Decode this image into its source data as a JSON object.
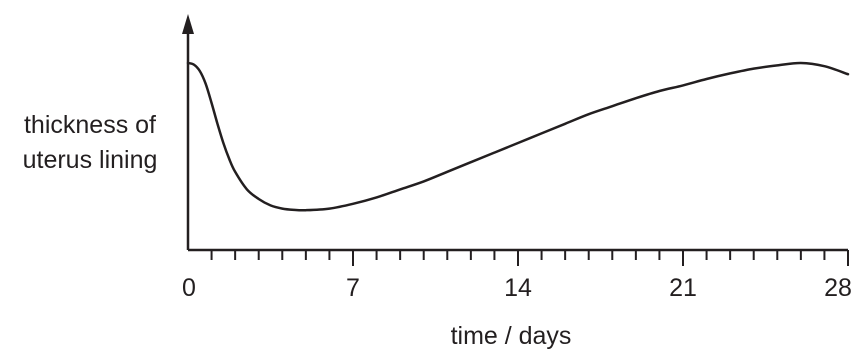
{
  "chart_data": {
    "type": "line",
    "title": "",
    "xlabel": "time / days",
    "ylabel_lines": [
      "thickness of",
      "uterus lining"
    ],
    "xlim": [
      0,
      28
    ],
    "ylim": [
      0,
      1
    ],
    "x_ticks_major": [
      "0",
      "7",
      "14",
      "21",
      "28"
    ],
    "x_minor_tick_step": 1,
    "grid": false,
    "y_tick_labels": "none",
    "series": [
      {
        "x": [
          0,
          0.25,
          0.5,
          0.75,
          1,
          1.25,
          1.5,
          1.75,
          2,
          2.5,
          3,
          3.5,
          4,
          4.5,
          5,
          6,
          7,
          8,
          9,
          10,
          11,
          12,
          13,
          14,
          15,
          16,
          17,
          18,
          19,
          20,
          21,
          22,
          23,
          24,
          25,
          26,
          27,
          28
        ],
        "y": [
          0.95,
          0.94,
          0.9,
          0.82,
          0.7,
          0.57,
          0.45,
          0.35,
          0.27,
          0.16,
          0.1,
          0.06,
          0.04,
          0.032,
          0.03,
          0.04,
          0.07,
          0.11,
          0.16,
          0.21,
          0.27,
          0.33,
          0.39,
          0.45,
          0.51,
          0.57,
          0.63,
          0.68,
          0.73,
          0.775,
          0.81,
          0.85,
          0.885,
          0.915,
          0.935,
          0.95,
          0.93,
          0.88
        ]
      }
    ],
    "line_color": "#231f20"
  }
}
